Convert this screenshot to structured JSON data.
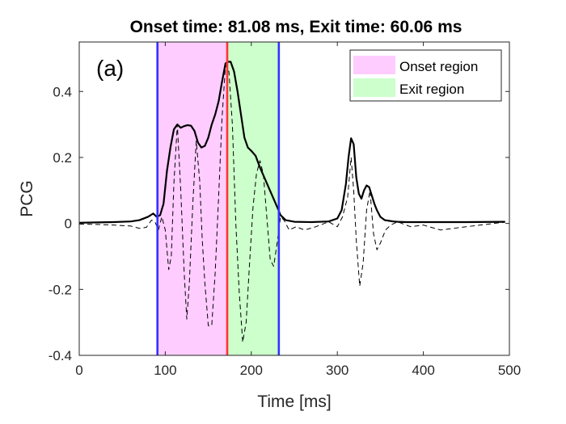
{
  "chart_data": {
    "type": "line",
    "panel_label": "(a)",
    "title": "Onset time: 81.08 ms, Exit time: 60.06 ms",
    "xlabel": "Time [ms]",
    "ylabel": "PCG",
    "xlim": [
      0,
      500
    ],
    "ylim": [
      -0.4,
      0.55
    ],
    "x_ticks": [
      0,
      100,
      200,
      300,
      400,
      500
    ],
    "y_ticks": [
      -0.4,
      -0.2,
      0,
      0.2,
      0.4
    ],
    "x_tick_labels": [
      "0",
      "100",
      "200",
      "300",
      "400",
      "500"
    ],
    "y_tick_labels": [
      "-0.4",
      "-0.2",
      "0",
      "0.2",
      "0.4"
    ],
    "grid": false,
    "legend_position": "top-right",
    "regions": [
      {
        "name": "Onset region",
        "x_start": 90.9,
        "x_end": 172.0,
        "color": "#ffccff"
      },
      {
        "name": "Exit region",
        "x_start": 172.0,
        "x_end": 232.0,
        "color": "#ccffcc"
      }
    ],
    "vertical_lines": [
      {
        "name": "onset-start",
        "x": 90.9,
        "color": "#3333ff"
      },
      {
        "name": "peak",
        "x": 172.0,
        "color": "#ff3333"
      },
      {
        "name": "exit-end",
        "x": 232.0,
        "color": "#3333ff"
      }
    ],
    "series": [
      {
        "name": "envelope",
        "style": "solid",
        "color": "#000000",
        "x": [
          0,
          20,
          40,
          60,
          70,
          80,
          86,
          90,
          94,
          98,
          102,
          106,
          110,
          114,
          118,
          122,
          126,
          130,
          134,
          138,
          142,
          146,
          150,
          154,
          158,
          162,
          166,
          170,
          173,
          176,
          180,
          184,
          188,
          192,
          196,
          200,
          205,
          210,
          215,
          220,
          225,
          230,
          234,
          240,
          250,
          270,
          290,
          300,
          305,
          310,
          313,
          316,
          319,
          322,
          325,
          328,
          331,
          334,
          337,
          340,
          343,
          346,
          350,
          355,
          360,
          365,
          370,
          380,
          400,
          450,
          495
        ],
        "y": [
          0.002,
          0.003,
          0.004,
          0.006,
          0.01,
          0.02,
          0.03,
          0.02,
          0.025,
          0.06,
          0.16,
          0.23,
          0.285,
          0.3,
          0.29,
          0.295,
          0.298,
          0.296,
          0.28,
          0.245,
          0.23,
          0.235,
          0.26,
          0.3,
          0.33,
          0.37,
          0.43,
          0.485,
          0.49,
          0.49,
          0.46,
          0.4,
          0.33,
          0.26,
          0.23,
          0.22,
          0.205,
          0.17,
          0.14,
          0.11,
          0.08,
          0.05,
          0.025,
          0.01,
          0.005,
          0.004,
          0.006,
          0.015,
          0.04,
          0.12,
          0.2,
          0.258,
          0.24,
          0.14,
          0.09,
          0.075,
          0.1,
          0.115,
          0.11,
          0.085,
          0.06,
          0.04,
          0.02,
          0.01,
          0.008,
          0.006,
          0.005,
          0.004,
          0.004,
          0.004,
          0.005
        ]
      },
      {
        "name": "signal",
        "style": "dashed",
        "color": "#000000",
        "x": [
          0,
          20,
          40,
          60,
          70,
          78,
          84,
          88,
          92,
          96,
          100,
          104,
          107,
          110,
          114,
          118,
          122,
          125,
          128,
          132,
          136,
          140,
          143,
          146,
          150,
          154,
          158,
          162,
          166,
          170,
          174,
          178,
          182,
          186,
          190,
          194,
          198,
          202,
          206,
          210,
          214,
          218,
          222,
          226,
          230,
          234,
          238,
          244,
          252,
          262,
          275,
          290,
          300,
          306,
          312,
          316,
          319,
          322,
          326,
          330,
          334,
          338,
          342,
          346,
          350,
          356,
          362,
          370,
          385,
          400,
          420,
          450,
          495
        ],
        "y": [
          -0.002,
          -0.003,
          -0.005,
          -0.008,
          -0.015,
          -0.012,
          0.01,
          0.005,
          -0.02,
          0.02,
          -0.02,
          -0.14,
          -0.1,
          0.12,
          0.3,
          0.1,
          -0.15,
          -0.29,
          -0.18,
          0.06,
          0.25,
          0.13,
          -0.05,
          -0.18,
          -0.31,
          -0.31,
          -0.15,
          0.08,
          0.32,
          0.48,
          0.46,
          0.3,
          0.0,
          -0.21,
          -0.36,
          -0.3,
          -0.12,
          0.05,
          0.15,
          0.19,
          0.15,
          0.02,
          -0.11,
          -0.13,
          -0.06,
          0.02,
          0.01,
          -0.02,
          -0.01,
          -0.02,
          -0.01,
          0.005,
          -0.01,
          0.02,
          0.08,
          0.2,
          0.1,
          -0.05,
          -0.19,
          -0.12,
          0.04,
          0.1,
          -0.03,
          -0.08,
          -0.06,
          -0.02,
          -0.005,
          0.005,
          -0.01,
          -0.005,
          -0.02,
          -0.01,
          0.004
        ]
      }
    ]
  }
}
